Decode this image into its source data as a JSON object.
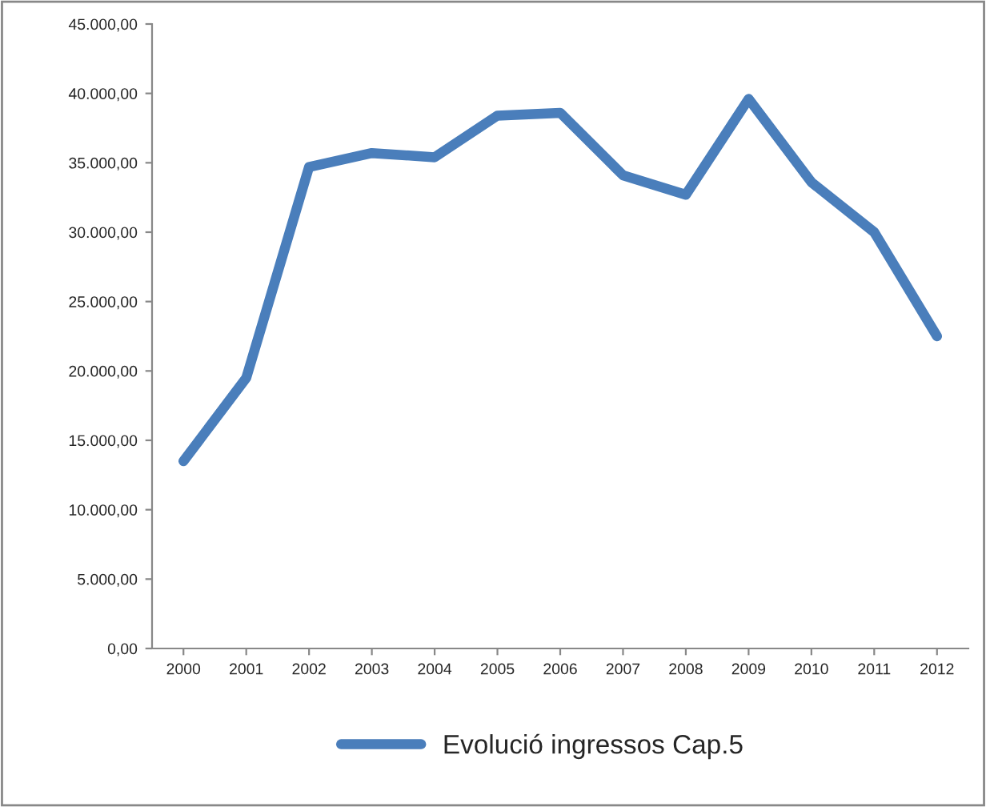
{
  "chart_data": {
    "type": "line",
    "categories": [
      "2000",
      "2001",
      "2002",
      "2003",
      "2004",
      "2005",
      "2006",
      "2007",
      "2008",
      "2009",
      "2010",
      "2011",
      "2012"
    ],
    "series": [
      {
        "name": "Evolució ingressos Cap.5",
        "color": "#4a7ebb",
        "values": [
          13500,
          19500,
          34700,
          35700,
          35400,
          38400,
          38600,
          34100,
          32700,
          39600,
          33600,
          30000,
          22500
        ]
      }
    ],
    "ylim": [
      0,
      45000
    ],
    "yticks": [
      {
        "value": 0,
        "label": "0,00"
      },
      {
        "value": 5000,
        "label": "5.000,00"
      },
      {
        "value": 10000,
        "label": "10.000,00"
      },
      {
        "value": 15000,
        "label": "15.000,00"
      },
      {
        "value": 20000,
        "label": "20.000,00"
      },
      {
        "value": 25000,
        "label": "25.000,00"
      },
      {
        "value": 30000,
        "label": "30.000,00"
      },
      {
        "value": 35000,
        "label": "35.000,00"
      },
      {
        "value": 40000,
        "label": "40.000,00"
      },
      {
        "value": 45000,
        "label": "45.000,00"
      }
    ],
    "grid": false,
    "legend": "bottom",
    "marker": "none",
    "line_style": "solid"
  }
}
